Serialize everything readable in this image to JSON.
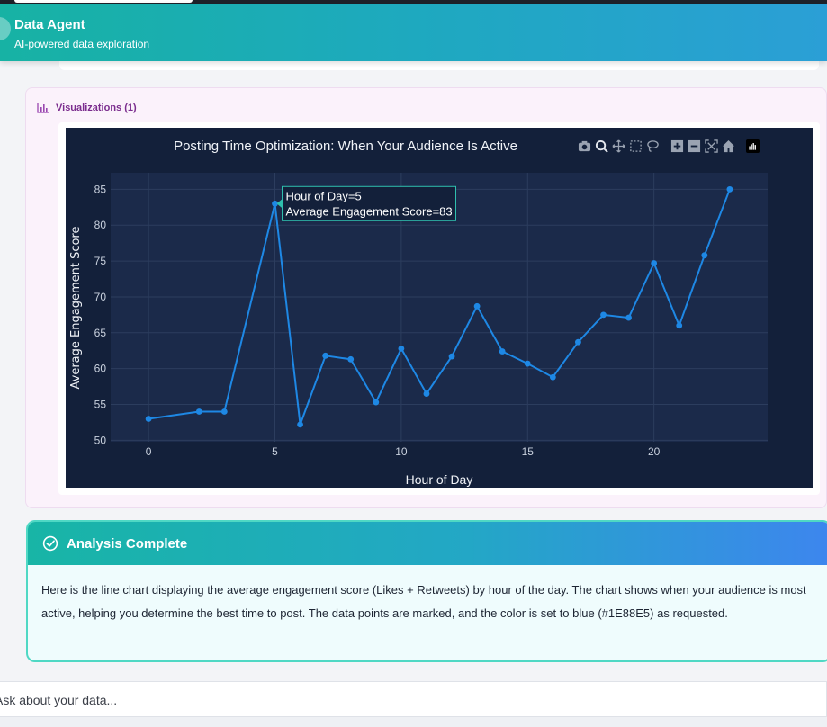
{
  "header": {
    "title": "Data Agent",
    "subtitle": "AI-powered data exploration"
  },
  "visualizations": {
    "label": "Visualizations (1)"
  },
  "chart_data": {
    "type": "line",
    "title": "Posting Time Optimization: When Your Audience Is Active",
    "xlabel": "Hour of Day",
    "ylabel": "Average Engagement Score",
    "x": [
      0,
      2,
      3,
      5,
      6,
      7,
      8,
      9,
      10,
      11,
      12,
      13,
      14,
      15,
      16,
      17,
      18,
      19,
      20,
      21,
      22,
      23
    ],
    "series": [
      {
        "values": [
          53,
          54,
          54,
          83,
          52.2,
          61.8,
          61.3,
          55.3,
          62.8,
          56.5,
          61.7,
          68.7,
          62.4,
          60.7,
          58.8,
          63.7,
          67.5,
          67.1,
          74.7,
          66,
          75.8,
          85
        ],
        "color": "#1E88E5"
      }
    ],
    "xlim": [
      -1.5,
      24.5
    ],
    "ylim": [
      49.8,
      87.3
    ],
    "x_ticks": [
      0,
      5,
      10,
      15,
      20
    ],
    "y_ticks": [
      50,
      55,
      60,
      65,
      70,
      75,
      80,
      85
    ],
    "grid": true,
    "markers": true,
    "hover": {
      "index": 3,
      "line1": "Hour of Day=5",
      "line2": "Average Engagement Score=83"
    },
    "background": "#1b2a4a",
    "paper": "#13203a"
  },
  "modebar": {
    "icons": [
      "camera-icon",
      "zoom-icon",
      "pan-icon",
      "box-select-icon",
      "lasso-icon",
      "zoom-in-icon",
      "zoom-out-icon",
      "autoscale-icon",
      "reset-axes-icon",
      "plotly-logo-icon"
    ]
  },
  "analysis": {
    "title": "Analysis Complete",
    "body": "Here is the line chart displaying the average engagement score (Likes + Retweets) by hour of the day. The chart shows when your audience is most active, helping you determine the best time to post. The data points are marked, and the color is set to blue (#1E88E5) as requested."
  },
  "input": {
    "placeholder": "Ask about your data..."
  },
  "colors": {
    "header_start": "#17b2a4",
    "header_end": "#2b9fd6",
    "accent_purple": "#7b2d8e",
    "analysis_border": "#4fd8c4"
  }
}
